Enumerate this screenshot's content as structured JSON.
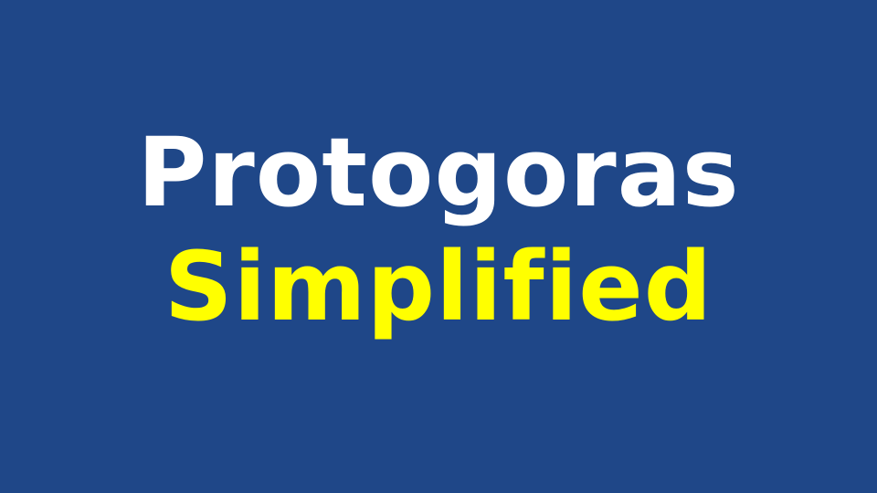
{
  "title": {
    "line1": "Protogoras",
    "line2": "Simplified"
  },
  "colors": {
    "background": "#1f4788",
    "line1": "#ffffff",
    "line2": "#ffff00"
  }
}
